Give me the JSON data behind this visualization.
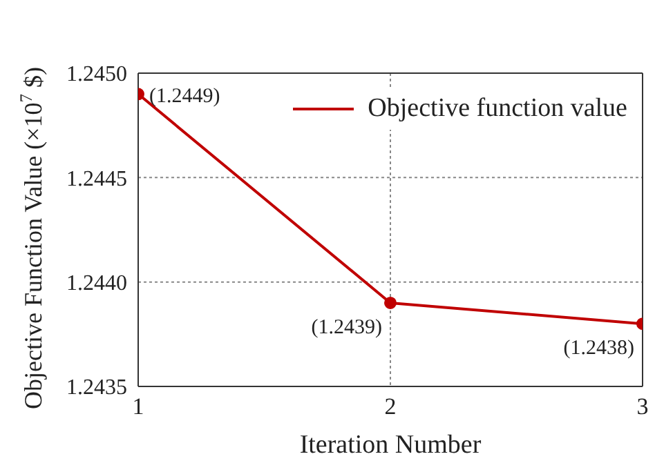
{
  "chart_data": {
    "type": "line",
    "xlabel": "Iteration Number",
    "ylabel": "Objective Function Value (×10$^{7}$ $)",
    "x": [
      1,
      2,
      3
    ],
    "series": [
      {
        "name": "Objective function value",
        "color": "#c00000",
        "values": [
          1.2449,
          1.2439,
          1.2438
        ],
        "value_labels": [
          "(1.2449)",
          "(1.2439)",
          "(1.2438)"
        ]
      }
    ],
    "xlim": [
      1,
      3
    ],
    "xticks": [
      1,
      2,
      3
    ],
    "ylim": [
      1.2435,
      1.245
    ],
    "yticks": [
      1.2435,
      {
        "value": 1.244,
        "label": "1.2440"
      },
      1.2445,
      {
        "value": 1.245,
        "label": "1.2450"
      }
    ],
    "grid": true,
    "legend": "top right",
    "marker": "circle",
    "line_style": "solid"
  }
}
